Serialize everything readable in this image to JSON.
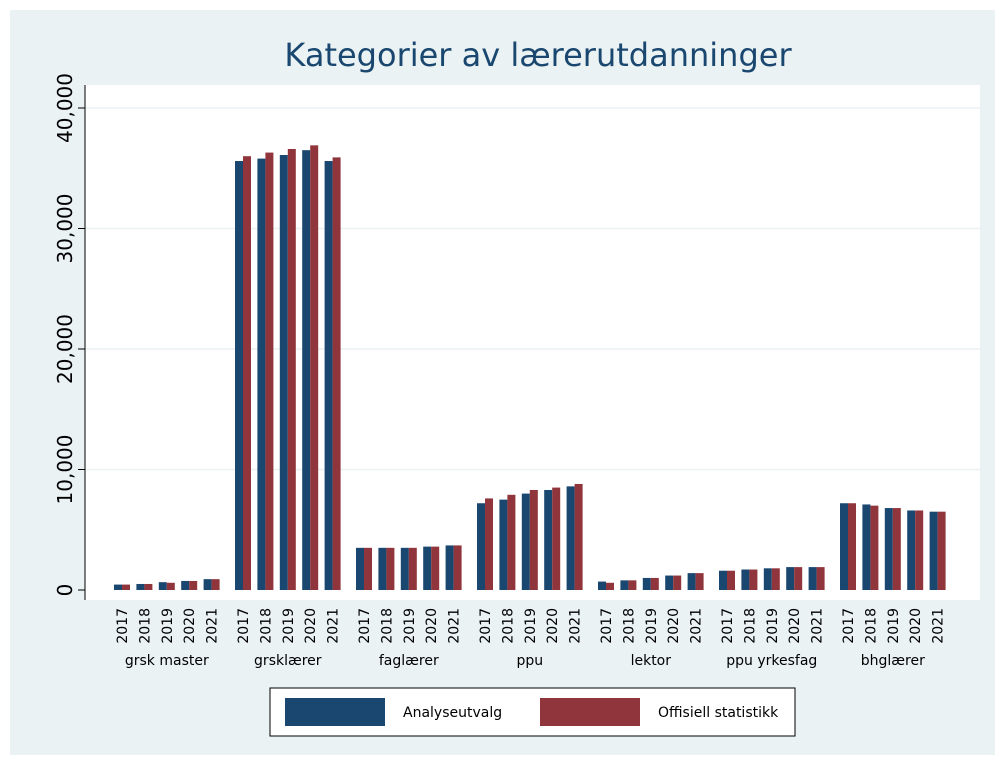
{
  "chart_data": {
    "type": "bar",
    "title": "Kategorier av lærerutdanninger",
    "groups": [
      "grsk master",
      "grsklærer",
      "faglærer",
      "ppu",
      "lektor",
      "ppu yrkesfag",
      "bhglærer"
    ],
    "categories": [
      "2017",
      "2018",
      "2019",
      "2020",
      "2021",
      "2017",
      "2018",
      "2019",
      "2020",
      "2021",
      "2017",
      "2018",
      "2019",
      "2020",
      "2021",
      "2017",
      "2018",
      "2019",
      "2020",
      "2021",
      "2017",
      "2018",
      "2019",
      "2020",
      "2021",
      "2017",
      "2018",
      "2019",
      "2020",
      "2021",
      "2017",
      "2018",
      "2019",
      "2020",
      "2021"
    ],
    "series": [
      {
        "name": "Analyseutvalg",
        "color": "#1a476f",
        "values": [
          450,
          500,
          650,
          750,
          900,
          35600,
          35800,
          36100,
          36500,
          35600,
          3500,
          3500,
          3500,
          3600,
          3700,
          7200,
          7500,
          8000,
          8300,
          8600,
          700,
          800,
          1000,
          1200,
          1400,
          1600,
          1700,
          1800,
          1900,
          1900,
          7200,
          7100,
          6800,
          6600,
          6500
        ]
      },
      {
        "name": "Offisiell statistikk",
        "color": "#90353b",
        "values": [
          450,
          500,
          600,
          750,
          900,
          36000,
          36300,
          36600,
          36900,
          35900,
          3500,
          3500,
          3500,
          3600,
          3700,
          7600,
          7900,
          8300,
          8500,
          8800,
          600,
          800,
          1000,
          1200,
          1400,
          1600,
          1700,
          1800,
          1900,
          1900,
          7200,
          7000,
          6800,
          6600,
          6500
        ]
      }
    ],
    "ylim": [
      0,
      40000
    ],
    "yticks": [
      0,
      {
        "value": 10000,
        "label": "10,000"
      },
      {
        "value": 20000,
        "label": "20,000"
      },
      {
        "value": 30000,
        "label": "30,000"
      },
      {
        "value": 40000,
        "label": "40,000"
      }
    ],
    "grid": true
  }
}
